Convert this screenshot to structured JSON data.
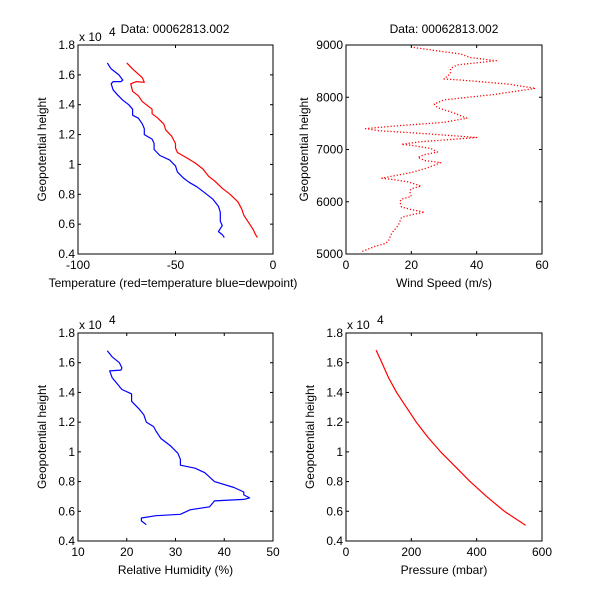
{
  "chart_data": [
    {
      "id": "temperature",
      "type": "line",
      "title": "Data: 00062813.002",
      "xlabel": "Temperature (red=temperature blue=dewpoint)",
      "ylabel": "Geopotential height",
      "y_exponent_label": "x 10",
      "y_exponent": "4",
      "xlim": [
        -100,
        0
      ],
      "ylim": [
        0.4,
        1.8
      ],
      "xticks": [
        -100,
        -50,
        0
      ],
      "xtick_labels": [
        "-100",
        "-50",
        "0"
      ],
      "yticks": [
        0.4,
        0.6,
        0.8,
        1.0,
        1.2,
        1.4,
        1.6,
        1.8
      ],
      "ytick_labels": [
        "0.4",
        "0.6",
        "0.8",
        "1",
        "1.2",
        "1.4",
        "1.6",
        "1.8"
      ],
      "series": [
        {
          "name": "temperature",
          "color": "#ff0000",
          "style": "solid",
          "points": [
            [
              -75,
              1.68
            ],
            [
              -72,
              1.64
            ],
            [
              -67,
              1.58
            ],
            [
              -66,
              1.55
            ],
            [
              -70,
              1.555
            ],
            [
              -73,
              1.54
            ],
            [
              -72,
              1.49
            ],
            [
              -69,
              1.46
            ],
            [
              -67,
              1.42
            ],
            [
              -64,
              1.39
            ],
            [
              -62,
              1.37
            ],
            [
              -62,
              1.34
            ],
            [
              -59,
              1.31
            ],
            [
              -56,
              1.27
            ],
            [
              -55,
              1.23
            ],
            [
              -52,
              1.19
            ],
            [
              -50,
              1.14
            ],
            [
              -50,
              1.11
            ],
            [
              -49,
              1.08
            ],
            [
              -45,
              1.05
            ],
            [
              -40,
              1.01
            ],
            [
              -36,
              0.97
            ],
            [
              -33,
              0.92
            ],
            [
              -30,
              0.89
            ],
            [
              -26,
              0.84
            ],
            [
              -22,
              0.8
            ],
            [
              -18,
              0.75
            ],
            [
              -16,
              0.7
            ],
            [
              -15,
              0.66
            ],
            [
              -12,
              0.6
            ],
            [
              -10,
              0.56
            ],
            [
              -9,
              0.53
            ],
            [
              -8,
              0.51
            ]
          ]
        },
        {
          "name": "dewpoint",
          "color": "#0000ff",
          "style": "solid",
          "points": [
            [
              -85,
              1.68
            ],
            [
              -83,
              1.64
            ],
            [
              -79,
              1.6
            ],
            [
              -77,
              1.565
            ],
            [
              -78,
              1.555
            ],
            [
              -82,
              1.555
            ],
            [
              -83,
              1.54
            ],
            [
              -82,
              1.5
            ],
            [
              -80,
              1.47
            ],
            [
              -77,
              1.43
            ],
            [
              -74,
              1.4
            ],
            [
              -72,
              1.37
            ],
            [
              -72,
              1.33
            ],
            [
              -69,
              1.31
            ],
            [
              -67,
              1.27
            ],
            [
              -66,
              1.24
            ],
            [
              -66,
              1.2
            ],
            [
              -62,
              1.17
            ],
            [
              -61,
              1.14
            ],
            [
              -61,
              1.1
            ],
            [
              -58,
              1.06
            ],
            [
              -53,
              1.03
            ],
            [
              -50,
              0.99
            ],
            [
              -49,
              0.95
            ],
            [
              -46,
              0.91
            ],
            [
              -43,
              0.88
            ],
            [
              -39,
              0.85
            ],
            [
              -35,
              0.81
            ],
            [
              -31,
              0.77
            ],
            [
              -28,
              0.72
            ],
            [
              -27,
              0.68
            ],
            [
              -27,
              0.62
            ],
            [
              -26,
              0.59
            ],
            [
              -28,
              0.55
            ],
            [
              -26,
              0.53
            ],
            [
              -25,
              0.51
            ]
          ]
        }
      ]
    },
    {
      "id": "wind-speed",
      "type": "line",
      "title": "Data: 00062813.002",
      "xlabel": "Wind Speed (m/s)",
      "ylabel": "Geopotential height",
      "xlim": [
        0,
        60
      ],
      "ylim": [
        5000,
        9000
      ],
      "xticks": [
        0,
        20,
        40,
        60
      ],
      "xtick_labels": [
        "0",
        "20",
        "40",
        "60"
      ],
      "yticks": [
        5000,
        6000,
        7000,
        8000,
        9000
      ],
      "ytick_labels": [
        "5000",
        "6000",
        "7000",
        "8000",
        "9000"
      ],
      "series": [
        {
          "name": "wind speed",
          "color": "#ff0000",
          "style": "dotted",
          "points": [
            [
              5,
              5050
            ],
            [
              9,
              5150
            ],
            [
              12,
              5200
            ],
            [
              13,
              5250
            ],
            [
              14,
              5400
            ],
            [
              16,
              5550
            ],
            [
              17,
              5700
            ],
            [
              20,
              5750
            ],
            [
              24,
              5800
            ],
            [
              20,
              5850
            ],
            [
              17,
              5900
            ],
            [
              16.5,
              6000
            ],
            [
              17,
              6050
            ],
            [
              20,
              6100
            ],
            [
              19.5,
              6200
            ],
            [
              20,
              6250
            ],
            [
              23,
              6300
            ],
            [
              19,
              6380
            ],
            [
              15,
              6420
            ],
            [
              11,
              6450
            ],
            [
              15,
              6500
            ],
            [
              20,
              6560
            ],
            [
              25,
              6650
            ],
            [
              29,
              6750
            ],
            [
              24,
              6790
            ],
            [
              22,
              6850
            ],
            [
              24,
              6900
            ],
            [
              28,
              6950
            ],
            [
              26,
              7020
            ],
            [
              20,
              7080
            ],
            [
              17,
              7100
            ],
            [
              23,
              7150
            ],
            [
              40,
              7230
            ],
            [
              25,
              7300
            ],
            [
              10,
              7360
            ],
            [
              6,
              7400
            ],
            [
              15,
              7450
            ],
            [
              30,
              7520
            ],
            [
              37,
              7600
            ],
            [
              33,
              7700
            ],
            [
              28,
              7800
            ],
            [
              27,
              7870
            ],
            [
              30,
              7950
            ],
            [
              45,
              8050
            ],
            [
              58,
              8170
            ],
            [
              50,
              8250
            ],
            [
              35,
              8330
            ],
            [
              30,
              8350
            ],
            [
              32,
              8450
            ],
            [
              32,
              8550
            ],
            [
              34,
              8620
            ],
            [
              46,
              8700
            ],
            [
              38,
              8760
            ],
            [
              35,
              8830
            ],
            [
              29,
              8880
            ],
            [
              22,
              8940
            ],
            [
              20,
              8960
            ]
          ]
        }
      ]
    },
    {
      "id": "relative-humidity",
      "type": "line",
      "title": "",
      "xlabel": "Relative Humidity (%)",
      "ylabel": "Geopotential height",
      "y_exponent_label": "x 10",
      "y_exponent": "4",
      "xlim": [
        10,
        50
      ],
      "ylim": [
        0.4,
        1.8
      ],
      "xticks": [
        10,
        20,
        30,
        40,
        50
      ],
      "xtick_labels": [
        "10",
        "20",
        "30",
        "40",
        "50"
      ],
      "yticks": [
        0.4,
        0.6,
        0.8,
        1.0,
        1.2,
        1.4,
        1.6,
        1.8
      ],
      "ytick_labels": [
        "0.4",
        "0.6",
        "0.8",
        "1",
        "1.2",
        "1.4",
        "1.6",
        "1.8"
      ],
      "series": [
        {
          "name": "relative humidity",
          "color": "#0000ff",
          "style": "solid",
          "points": [
            [
              16,
              1.68
            ],
            [
              17,
              1.64
            ],
            [
              18.5,
              1.6
            ],
            [
              19,
              1.565
            ],
            [
              18.8,
              1.55
            ],
            [
              16.5,
              1.545
            ],
            [
              17,
              1.5
            ],
            [
              18,
              1.46
            ],
            [
              19,
              1.42
            ],
            [
              21,
              1.39
            ],
            [
              21,
              1.34
            ],
            [
              22.5,
              1.29
            ],
            [
              23.5,
              1.25
            ],
            [
              24,
              1.2
            ],
            [
              25.5,
              1.17
            ],
            [
              26,
              1.14
            ],
            [
              27,
              1.09
            ],
            [
              29,
              1.04
            ],
            [
              30.5,
              0.99
            ],
            [
              31,
              0.95
            ],
            [
              31,
              0.91
            ],
            [
              34,
              0.89
            ],
            [
              36,
              0.86
            ],
            [
              38,
              0.8
            ],
            [
              42,
              0.76
            ],
            [
              44,
              0.73
            ],
            [
              44,
              0.71
            ],
            [
              45.2,
              0.69
            ],
            [
              44,
              0.68
            ],
            [
              38,
              0.67
            ],
            [
              37,
              0.63
            ],
            [
              33,
              0.61
            ],
            [
              31,
              0.58
            ],
            [
              26,
              0.57
            ],
            [
              23,
              0.555
            ],
            [
              23,
              0.535
            ],
            [
              24,
              0.51
            ]
          ]
        }
      ]
    },
    {
      "id": "pressure",
      "type": "line",
      "title": "",
      "xlabel": "Pressure (mbar)",
      "ylabel": "Geopotential height",
      "y_exponent_label": "x 10",
      "y_exponent": "4",
      "xlim": [
        0,
        600
      ],
      "ylim": [
        0.4,
        1.8
      ],
      "xticks": [
        0,
        200,
        400,
        600
      ],
      "xtick_labels": [
        "0",
        "200",
        "400",
        "600"
      ],
      "yticks": [
        0.4,
        0.6,
        0.8,
        1.0,
        1.2,
        1.4,
        1.6,
        1.8
      ],
      "ytick_labels": [
        "0.4",
        "0.6",
        "0.8",
        "1",
        "1.2",
        "1.4",
        "1.6",
        "1.8"
      ],
      "series": [
        {
          "name": "pressure",
          "color": "#ff0000",
          "style": "solid",
          "points": [
            [
              92,
              1.685
            ],
            [
              110,
              1.6
            ],
            [
              130,
              1.5
            ],
            [
              155,
              1.4
            ],
            [
              185,
              1.3
            ],
            [
              215,
              1.2
            ],
            [
              250,
              1.1
            ],
            [
              290,
              1.0
            ],
            [
              335,
              0.9
            ],
            [
              380,
              0.8
            ],
            [
              430,
              0.7
            ],
            [
              485,
              0.6
            ],
            [
              550,
              0.505
            ]
          ]
        }
      ]
    }
  ]
}
